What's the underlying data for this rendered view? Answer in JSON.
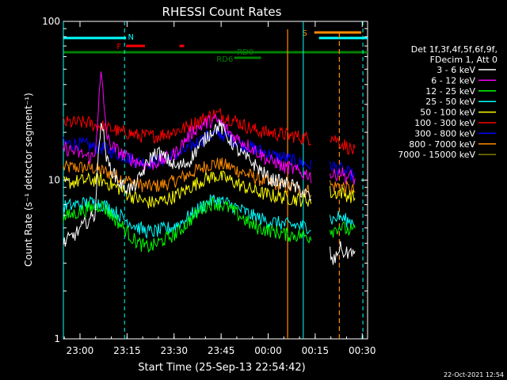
{
  "window": {
    "background": "#000000"
  },
  "footer": {
    "timestamp": "22-Oct-2021 12:54"
  },
  "chart_data": {
    "type": "line",
    "title": "RHESSI Count Rates",
    "xlabel": "Start Time (25-Sep-13 22:54:42)",
    "ylabel": "Count Rate (s⁻¹ detector segment⁻¹)",
    "yscale": "log",
    "ylim": [
      1,
      100
    ],
    "xlim_minutes_after_start": [
      0,
      97
    ],
    "x_ticks": [
      "23:00",
      "23:15",
      "23:30",
      "23:45",
      "00:00",
      "00:15",
      "00:30"
    ],
    "y_ticks": [
      "1",
      "10",
      "100"
    ],
    "legend": {
      "header": [
        "Det 1f,3f,4f,5f,6f,9f,",
        "FDecim 1, Att 0"
      ],
      "placement": "right"
    },
    "series": [
      {
        "name": "3 - 6 keV",
        "color": "#ffffff",
        "x": [
          0,
          4,
          8,
          10,
          12,
          14,
          16,
          18,
          20,
          22,
          24,
          26,
          28,
          30,
          32,
          34,
          36,
          38,
          40,
          42,
          44,
          46,
          48,
          50,
          52,
          54,
          56,
          58,
          60,
          62,
          64,
          66,
          68,
          70,
          72,
          74,
          76,
          78,
          79,
          85,
          86,
          87,
          88,
          89,
          90,
          91,
          92,
          93
        ],
        "values": [
          4.0,
          4.6,
          5.6,
          6.0,
          25,
          13,
          11,
          9.5,
          9.0,
          8.8,
          10,
          12,
          14,
          15,
          14,
          13,
          12,
          12.5,
          13,
          15,
          17,
          19,
          21,
          22,
          19,
          17,
          15,
          14,
          13,
          12,
          11,
          10,
          10,
          9.5,
          9.5,
          9.0,
          8.5,
          8.0,
          7.5,
          3.5,
          3.0,
          3.3,
          3.8,
          3.6,
          3.4,
          3.5,
          3.6,
          3.3
        ]
      },
      {
        "name": "6 - 12 keV",
        "color": "#ff00ff",
        "x": [
          0,
          4,
          8,
          10,
          12,
          14,
          16,
          18,
          20,
          22,
          24,
          26,
          28,
          30,
          32,
          34,
          36,
          38,
          40,
          42,
          44,
          46,
          48,
          50,
          52,
          54,
          56,
          58,
          60,
          62,
          64,
          66,
          68,
          70,
          72,
          74,
          76,
          78,
          79,
          85,
          86,
          87,
          88,
          89,
          90,
          91,
          92,
          93
        ],
        "values": [
          16,
          15,
          14,
          14,
          47,
          18,
          16,
          15,
          14,
          13.5,
          13,
          12.5,
          12.5,
          13,
          13.5,
          14,
          15,
          17,
          19,
          21,
          22,
          23,
          24,
          23,
          21,
          19,
          18,
          17,
          16,
          15,
          14,
          13,
          13,
          12,
          12,
          11.5,
          11,
          11,
          10.5,
          11,
          10.5,
          11,
          11.5,
          11,
          10.5,
          10.5,
          10.5,
          10
        ]
      },
      {
        "name": "12 - 25 keV",
        "color": "#00ff00",
        "x": [
          0,
          4,
          8,
          10,
          12,
          14,
          16,
          18,
          20,
          22,
          24,
          26,
          28,
          30,
          32,
          34,
          36,
          38,
          40,
          42,
          44,
          46,
          48,
          50,
          52,
          54,
          56,
          58,
          60,
          62,
          64,
          66,
          68,
          70,
          72,
          74,
          76,
          78,
          79,
          85,
          86,
          87,
          88,
          89,
          90,
          91,
          92,
          93
        ],
        "values": [
          5.8,
          6.2,
          6.6,
          6.7,
          7.0,
          6.4,
          5.8,
          5.3,
          4.8,
          4.3,
          4.0,
          3.8,
          3.8,
          4.0,
          4.2,
          4.4,
          4.6,
          5.0,
          5.5,
          6.0,
          6.6,
          7.0,
          7.2,
          7.0,
          6.8,
          6.4,
          6.0,
          5.6,
          5.2,
          5.0,
          4.9,
          4.8,
          4.7,
          4.6,
          4.5,
          4.5,
          4.5,
          4.4,
          4.4,
          5.0,
          4.8,
          5.0,
          5.1,
          5.0,
          4.9,
          4.8,
          4.8,
          4.7
        ]
      },
      {
        "name": "25 - 50 keV",
        "color": "#00ffff",
        "x": [
          0,
          4,
          8,
          10,
          12,
          14,
          16,
          18,
          20,
          22,
          24,
          26,
          28,
          30,
          32,
          34,
          36,
          38,
          40,
          42,
          44,
          46,
          48,
          50,
          52,
          54,
          56,
          58,
          60,
          62,
          64,
          66,
          68,
          70,
          72,
          74,
          76,
          78,
          79,
          85,
          86,
          87,
          88,
          89,
          90,
          91,
          92,
          93
        ],
        "values": [
          6.8,
          7.0,
          7.2,
          7.2,
          7.1,
          6.8,
          6.4,
          6.0,
          5.6,
          5.3,
          5.0,
          4.8,
          4.7,
          4.8,
          4.9,
          5.0,
          5.2,
          5.5,
          5.9,
          6.3,
          6.8,
          7.2,
          7.5,
          7.4,
          7.2,
          6.9,
          6.6,
          6.3,
          6.0,
          5.8,
          5.6,
          5.5,
          5.4,
          5.3,
          5.2,
          5.2,
          5.1,
          5.1,
          5.0,
          5.8,
          5.6,
          5.8,
          5.9,
          5.7,
          5.6,
          5.5,
          5.5,
          5.4
        ]
      },
      {
        "name": "50 - 100 keV",
        "color": "#ffff00",
        "x": [
          0,
          4,
          8,
          10,
          12,
          14,
          16,
          18,
          20,
          22,
          24,
          26,
          28,
          30,
          32,
          34,
          36,
          38,
          40,
          42,
          44,
          46,
          48,
          50,
          52,
          54,
          56,
          58,
          60,
          62,
          64,
          66,
          68,
          70,
          72,
          74,
          76,
          78,
          79,
          85,
          86,
          87,
          88,
          89,
          90,
          91,
          92,
          93
        ],
        "values": [
          9.5,
          9.8,
          10,
          10,
          10,
          9.6,
          9.2,
          8.8,
          8.3,
          7.9,
          7.6,
          7.3,
          7.2,
          7.3,
          7.5,
          7.7,
          8.0,
          8.4,
          8.9,
          9.4,
          9.9,
          10.3,
          10.6,
          10.5,
          10.2,
          9.8,
          9.4,
          9.0,
          8.7,
          8.4,
          8.2,
          8.0,
          7.9,
          7.8,
          7.7,
          7.6,
          7.5,
          7.5,
          7.4,
          8.4,
          8.1,
          8.3,
          8.5,
          8.3,
          8.1,
          8.0,
          7.9,
          7.8
        ]
      },
      {
        "name": "100 - 300 keV",
        "color": "#ff0000",
        "x": [
          0,
          4,
          8,
          10,
          12,
          14,
          16,
          18,
          20,
          22,
          24,
          26,
          28,
          30,
          32,
          34,
          36,
          38,
          40,
          42,
          44,
          46,
          48,
          50,
          52,
          54,
          56,
          58,
          60,
          62,
          64,
          66,
          68,
          70,
          72,
          74,
          76,
          78,
          79,
          85,
          86,
          87,
          88,
          89,
          90,
          91,
          92,
          93
        ],
        "values": [
          23,
          23,
          23,
          22,
          22,
          21,
          21,
          20,
          20,
          19.5,
          19,
          19,
          19,
          19,
          19.5,
          20,
          20.5,
          21,
          22,
          23,
          24,
          25,
          26,
          26,
          25,
          24,
          23,
          22,
          21,
          20.5,
          20,
          20,
          19.5,
          19.5,
          19,
          19,
          18.5,
          18.5,
          18,
          19,
          18.5,
          18,
          17.5,
          17,
          16.5,
          16,
          15.5,
          15
        ]
      },
      {
        "name": "300 - 800 keV",
        "color": "#0000ff",
        "x": [
          0,
          4,
          8,
          10,
          12,
          14,
          16,
          18,
          20,
          22,
          24,
          26,
          28,
          30,
          32,
          34,
          36,
          38,
          40,
          42,
          44,
          46,
          48,
          50,
          52,
          54,
          56,
          58,
          60,
          62,
          64,
          66,
          68,
          70,
          72,
          74,
          76,
          78,
          79,
          85,
          86,
          87,
          88,
          89,
          90,
          91,
          92,
          93
        ],
        "values": [
          17,
          17,
          16.5,
          16,
          16,
          15.5,
          15,
          14.5,
          14,
          13.5,
          13,
          13,
          13,
          13.2,
          13.5,
          14,
          14.5,
          15,
          16,
          17,
          18,
          19,
          19.5,
          19.5,
          19,
          18,
          17,
          16.5,
          16,
          15.5,
          15,
          14.5,
          14,
          14,
          13.5,
          13,
          12.8,
          12.5,
          12.3,
          12.5,
          12.2,
          12,
          11.8,
          11.5,
          11.2,
          11,
          10.8,
          10.5
        ]
      },
      {
        "name": "800 - 7000 keV",
        "color": "#ff8c00",
        "x": [
          0,
          4,
          8,
          10,
          12,
          14,
          16,
          18,
          20,
          22,
          24,
          26,
          28,
          30,
          32,
          34,
          36,
          38,
          40,
          42,
          44,
          46,
          48,
          50,
          52,
          54,
          56,
          58,
          60,
          62,
          64,
          66,
          68,
          70,
          72,
          74,
          76,
          78,
          79,
          85,
          86,
          87,
          88,
          89,
          90,
          91,
          92,
          93
        ],
        "values": [
          12,
          12,
          12,
          11.8,
          11.5,
          11.2,
          10.8,
          10.4,
          10,
          9.7,
          9.4,
          9.2,
          9.1,
          9.2,
          9.4,
          9.6,
          10,
          10.4,
          10.9,
          11.4,
          11.9,
          12.4,
          12.7,
          12.6,
          12.3,
          11.9,
          11.4,
          11,
          10.6,
          10.2,
          9.9,
          9.6,
          9.4,
          9.2,
          9.0,
          8.9,
          8.7,
          8.6,
          8.5,
          9.4,
          9.1,
          9.2,
          9.3,
          9.1,
          9.0,
          8.8,
          8.7,
          8.5
        ]
      },
      {
        "name": "7000 - 15000 keV",
        "color": "#808000",
        "x": [],
        "values": []
      }
    ],
    "vertical_markers_minutes": {
      "cyan_solid": [
        0,
        76.5
      ],
      "cyan_dashed": [
        19.5,
        95.5
      ],
      "orange_solid": 71.5,
      "orange_dashed": 88
    },
    "flag_labels": [
      "N",
      "F",
      "RD0",
      "RD6",
      "S"
    ],
    "flags": [
      {
        "label": "N",
        "color": "#00ffff",
        "x_start_min": 0,
        "x_end_min": 20
      },
      {
        "label": "F",
        "color": "#ff0000",
        "x_start_min": 20,
        "x_end_min": 26
      },
      {
        "label": "",
        "color": "#ff0000",
        "x_start_min": 37,
        "x_end_min": 38.5
      },
      {
        "label": "RD0",
        "color": "#008000",
        "x_start_min": 0,
        "x_end_min": 97
      },
      {
        "label": "RD6",
        "color": "#008000",
        "x_start_min": 54.5,
        "x_end_min": 63
      },
      {
        "label": "S",
        "color": "#ff8c00",
        "x_start_min": 80,
        "x_end_min": 95
      },
      {
        "label": "",
        "color": "#00ffff",
        "x_start_min": 81.5,
        "x_end_min": 97
      }
    ]
  }
}
